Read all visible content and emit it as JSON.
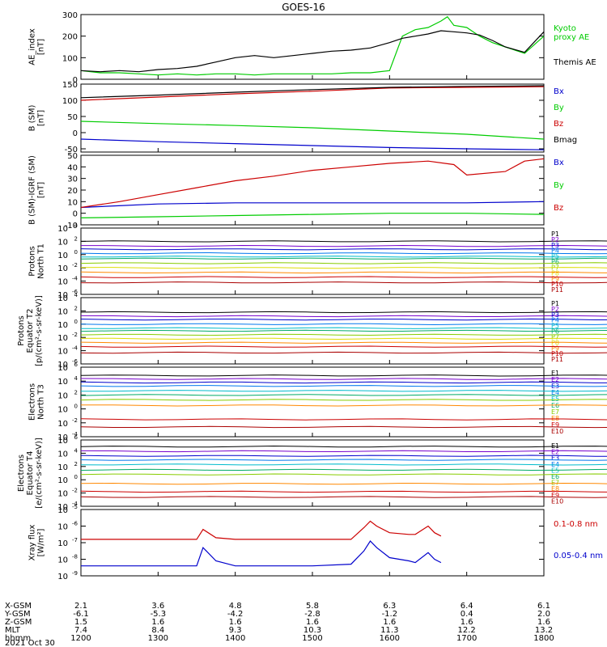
{
  "title": "GOES-16",
  "footer_date": "2021 Oct 30",
  "colors": {
    "black": "#000000",
    "green": "#00cc00",
    "blue": "#0000cc",
    "red": "#cc0000",
    "magenta": "#cc00cc",
    "cyan": "#00bbcc",
    "orange": "#ff8800",
    "yellow": "#dddd00"
  },
  "chart_data": [
    {
      "type": "line",
      "ylabel": [
        "AE_index",
        "[nT]"
      ],
      "ylim": [
        0,
        300
      ],
      "yticks": [
        "0",
        "100",
        "200",
        "300"
      ],
      "series": [
        {
          "name": "Kyoto proxy AE",
          "color": "#00cc00",
          "x": [
            1200,
            1215,
            1230,
            1245,
            1300,
            1315,
            1330,
            1345,
            1400,
            1415,
            1430,
            1445,
            1500,
            1515,
            1530,
            1545,
            1600,
            1610,
            1620,
            1630,
            1640,
            1645,
            1650,
            1700,
            1710,
            1720,
            1730,
            1745,
            1800
          ],
          "y": [
            40,
            30,
            30,
            25,
            20,
            25,
            20,
            25,
            25,
            20,
            25,
            25,
            25,
            25,
            30,
            30,
            40,
            200,
            230,
            240,
            270,
            290,
            250,
            240,
            200,
            170,
            150,
            120,
            200
          ]
        },
        {
          "name": "Themis AE",
          "color": "#000000",
          "x": [
            1200,
            1215,
            1230,
            1245,
            1300,
            1315,
            1330,
            1345,
            1400,
            1415,
            1430,
            1445,
            1500,
            1515,
            1530,
            1545,
            1600,
            1610,
            1620,
            1630,
            1640,
            1650,
            1700,
            1710,
            1720,
            1730,
            1745,
            1800
          ],
          "y": [
            40,
            35,
            40,
            35,
            45,
            50,
            60,
            80,
            100,
            110,
            100,
            110,
            120,
            130,
            135,
            145,
            170,
            190,
            200,
            210,
            225,
            220,
            215,
            205,
            180,
            150,
            125,
            220
          ]
        }
      ]
    },
    {
      "type": "line",
      "ylabel": [
        "B (SM)",
        "[nT]"
      ],
      "ylim": [
        -60,
        150
      ],
      "yticks": [
        "-50",
        "0",
        "50",
        "100",
        "150"
      ],
      "series": [
        {
          "name": "Bx",
          "color": "#0000cc",
          "x": [
            1200,
            1300,
            1400,
            1500,
            1600,
            1700,
            1800
          ],
          "y": [
            -20,
            -28,
            -34,
            -40,
            -46,
            -50,
            -53
          ]
        },
        {
          "name": "By",
          "color": "#00cc00",
          "x": [
            1200,
            1300,
            1400,
            1500,
            1600,
            1700,
            1800
          ],
          "y": [
            35,
            28,
            22,
            15,
            5,
            -5,
            -20
          ]
        },
        {
          "name": "Bz",
          "color": "#cc0000",
          "x": [
            1200,
            1300,
            1400,
            1500,
            1600,
            1700,
            1800
          ],
          "y": [
            100,
            110,
            120,
            128,
            138,
            140,
            142
          ]
        },
        {
          "name": "Bmag",
          "color": "#000000",
          "x": [
            1200,
            1300,
            1400,
            1500,
            1600,
            1700,
            1800
          ],
          "y": [
            108,
            116,
            125,
            133,
            140,
            143,
            145
          ]
        }
      ]
    },
    {
      "type": "line",
      "ylabel": [
        "B (SM)-IGRF (SM)",
        "[nT]"
      ],
      "ylim": [
        -10,
        50
      ],
      "yticks": [
        "-10",
        "0",
        "10",
        "20",
        "30",
        "40",
        "50"
      ],
      "series": [
        {
          "name": "Bx",
          "color": "#0000cc",
          "x": [
            1200,
            1300,
            1400,
            1500,
            1600,
            1700,
            1800
          ],
          "y": [
            5,
            8,
            9,
            9,
            9,
            9,
            10
          ]
        },
        {
          "name": "By",
          "color": "#00cc00",
          "x": [
            1200,
            1300,
            1400,
            1500,
            1600,
            1700,
            1800
          ],
          "y": [
            -4,
            -3,
            -2,
            -1,
            0,
            0,
            -1
          ]
        },
        {
          "name": "Bz",
          "color": "#cc0000",
          "x": [
            1200,
            1230,
            1300,
            1330,
            1400,
            1430,
            1500,
            1530,
            1600,
            1630,
            1650,
            1700,
            1730,
            1745,
            1800
          ],
          "y": [
            5,
            10,
            16,
            22,
            28,
            32,
            37,
            40,
            43,
            45,
            42,
            33,
            36,
            45,
            47
          ]
        }
      ]
    },
    {
      "type": "line",
      "log": true,
      "ylabel": [
        "Protons",
        "North T1"
      ],
      "ylim_exp": [
        -6,
        4
      ],
      "yticks_exp": [
        4,
        2,
        0,
        -2,
        -4,
        -6
      ],
      "levels": [
        2.0,
        1.3,
        0.8,
        0.2,
        -0.3,
        -0.6,
        -1.3,
        -2.0,
        -2.7,
        -3.4,
        -4.2
      ],
      "labels": [
        "P1",
        "P2",
        "P3",
        "P4",
        "P5",
        "P6",
        "P7",
        "P8",
        "P9",
        "P10",
        "P11"
      ],
      "label_colors": [
        "#000000",
        "#7700cc",
        "#0000cc",
        "#0077ee",
        "#00bbcc",
        "#00aa66",
        "#88cc00",
        "#dddd00",
        "#ff8800",
        "#cc0000",
        "#aa0000"
      ]
    },
    {
      "type": "line",
      "log": true,
      "ylabel": [
        "Protons",
        "Equator T2",
        "[p/(cm²-s-sr-keV)]"
      ],
      "ylim_exp": [
        -6,
        4
      ],
      "yticks_exp": [
        4,
        2,
        0,
        -2,
        -4,
        -6
      ],
      "levels": [
        1.8,
        1.2,
        0.7,
        0.0,
        -0.6,
        -1.0,
        -1.6,
        -2.2,
        -2.8,
        -3.4,
        -4.3
      ],
      "labels": [
        "P1",
        "P2",
        "P3",
        "P4",
        "P5",
        "P6",
        "P7",
        "P8",
        "P9",
        "P10",
        "P11"
      ],
      "label_colors": [
        "#000000",
        "#7700cc",
        "#0000cc",
        "#0077ee",
        "#00bbcc",
        "#00aa66",
        "#88cc00",
        "#dddd00",
        "#ff8800",
        "#cc0000",
        "#aa0000"
      ]
    },
    {
      "type": "line",
      "log": true,
      "ylabel": [
        "Electrons",
        "North T3"
      ],
      "ylim_exp": [
        -4,
        6
      ],
      "yticks_exp": [
        6,
        4,
        2,
        0,
        -2,
        -4
      ],
      "levels": [
        4.8,
        4.3,
        3.8,
        3.3,
        2.6,
        2.0,
        1.3,
        0.5,
        -1.5,
        -2.6
      ],
      "labels": [
        "E1",
        "E2",
        "E3",
        "E4",
        "E5",
        "E6",
        "E7",
        "E8",
        "E9",
        "E10"
      ],
      "label_colors": [
        "#000000",
        "#7700cc",
        "#0000cc",
        "#0077ee",
        "#00bbcc",
        "#00aa66",
        "#88cc00",
        "#ff8800",
        "#cc0000",
        "#aa0000"
      ]
    },
    {
      "type": "line",
      "log": true,
      "ylabel": [
        "Electrons",
        "Equator T4",
        "[e/(cm²-s-sr-keV)]"
      ],
      "ylim_exp": [
        -4,
        6
      ],
      "yticks_exp": [
        6,
        4,
        2,
        0,
        -2,
        -4
      ],
      "levels": [
        5.0,
        4.3,
        3.6,
        3.0,
        2.3,
        1.5,
        0.8,
        -0.6,
        -1.8,
        -2.6
      ],
      "labels": [
        "E1",
        "E2",
        "E3",
        "E4",
        "E5",
        "E6",
        "E7",
        "E8",
        "E9",
        "E10"
      ],
      "label_colors": [
        "#000000",
        "#7700cc",
        "#0000cc",
        "#0077ee",
        "#00bbcc",
        "#00aa66",
        "#88cc00",
        "#ff8800",
        "#cc0000",
        "#aa0000"
      ]
    },
    {
      "type": "line",
      "log": true,
      "ylabel": [
        "Xray flux",
        "[W/m²]"
      ],
      "ylim_exp": [
        -9,
        -5
      ],
      "yticks_exp": [
        -5,
        -6,
        -7,
        -8,
        -9
      ],
      "series": [
        {
          "name": "0.1-0.8 nm",
          "color": "#cc0000",
          "x": [
            1200,
            1300,
            1330,
            1335,
            1345,
            1400,
            1500,
            1530,
            1540,
            1545,
            1550,
            1600,
            1615,
            1620,
            1630,
            1635,
            1640
          ],
          "y": [
            -6.8,
            -6.8,
            -6.8,
            -6.2,
            -6.7,
            -6.8,
            -6.8,
            -6.8,
            -6.1,
            -5.7,
            -6.0,
            -6.4,
            -6.5,
            -6.5,
            -6.0,
            -6.4,
            -6.6
          ]
        },
        {
          "name": "0.05-0.4 nm",
          "color": "#0000cc",
          "x": [
            1200,
            1300,
            1330,
            1335,
            1345,
            1400,
            1500,
            1530,
            1540,
            1545,
            1550,
            1600,
            1615,
            1620,
            1630,
            1635,
            1640
          ],
          "y": [
            -8.4,
            -8.4,
            -8.4,
            -7.3,
            -8.1,
            -8.4,
            -8.4,
            -8.3,
            -7.5,
            -6.9,
            -7.3,
            -7.9,
            -8.1,
            -8.2,
            -7.6,
            -8.0,
            -8.2
          ]
        }
      ]
    }
  ],
  "xaxis": {
    "rows": [
      {
        "name": "X-GSM",
        "values": [
          "2.1",
          "3.6",
          "4.8",
          "5.8",
          "6.3",
          "6.4",
          "6.1"
        ]
      },
      {
        "name": "Y-GSM",
        "values": [
          "-6.1",
          "-5.3",
          "-4.2",
          "-2.8",
          "-1.2",
          "0.4",
          "2.0"
        ]
      },
      {
        "name": "Z-GSM",
        "values": [
          "1.5",
          "1.6",
          "1.6",
          "1.6",
          "1.6",
          "1.6",
          "1.6"
        ]
      },
      {
        "name": "MLT",
        "values": [
          "7.4",
          "8.4",
          "9.3",
          "10.3",
          "11.3",
          "12.2",
          "13.2"
        ]
      },
      {
        "name": "hhmm",
        "values": [
          "1200",
          "1300",
          "1400",
          "1500",
          "1600",
          "1700",
          "1800"
        ]
      }
    ],
    "xlim": [
      1200,
      1800
    ]
  }
}
